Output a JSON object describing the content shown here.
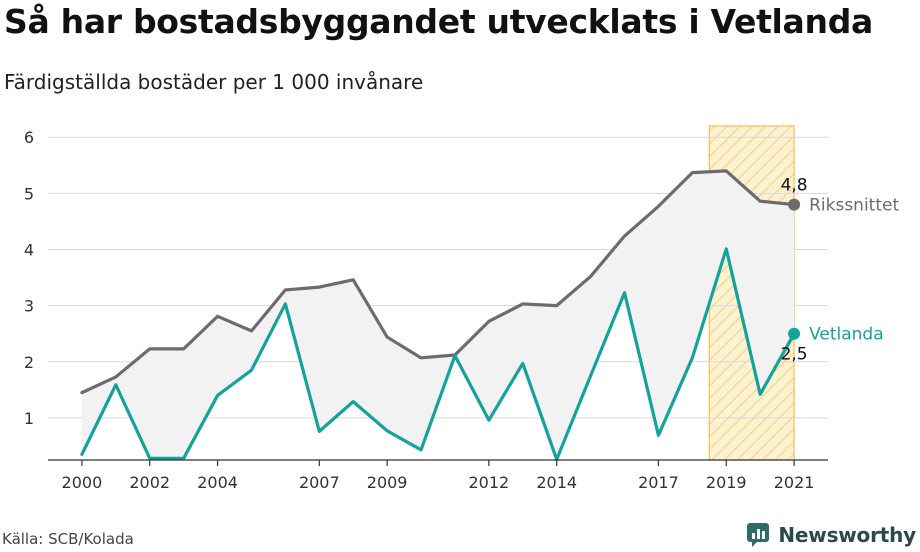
{
  "header": {
    "title": "Så har bostadsbyggandet utvecklats i Vetlanda",
    "subtitle": "Färdigställda bostäder per 1 000 invånare"
  },
  "footer": {
    "source": "Källa: SCB/Kolada",
    "brand": "Newsworthy",
    "brand_icon": "newsworthy-logo-icon"
  },
  "colors": {
    "riket": "#6d6a70",
    "vetlanda": "#14a39a",
    "highlight_fill": "#fbe7a9",
    "highlight_stroke": "#f2c14e",
    "gap_fill": "#f2f2f2",
    "grid": "#d9d9d9",
    "brand": "#2f6b6b"
  },
  "chart_data": {
    "type": "line",
    "x": [
      2000,
      2001,
      2002,
      2003,
      2004,
      2005,
      2006,
      2007,
      2008,
      2009,
      2010,
      2011,
      2012,
      2013,
      2014,
      2015,
      2016,
      2017,
      2018,
      2019,
      2020,
      2021
    ],
    "xticks": [
      "2000",
      "2002",
      "2004",
      "2007",
      "2009",
      "2012",
      "2014",
      "2017",
      "2019",
      "2021"
    ],
    "yticks": [
      "1",
      "2",
      "3",
      "4",
      "5",
      "6"
    ],
    "ylim": [
      0.25,
      6.2
    ],
    "xlim": [
      1999,
      2022
    ],
    "grid": true,
    "highlight_range": [
      2018.5,
      2021
    ],
    "series": [
      {
        "name": "Rikssnittet",
        "color_key": "riket",
        "values": [
          1.45,
          1.73,
          2.23,
          2.23,
          2.81,
          2.55,
          3.28,
          3.33,
          3.46,
          2.44,
          2.07,
          2.12,
          2.72,
          3.03,
          3.0,
          3.52,
          4.24,
          4.77,
          5.37,
          5.4,
          4.86,
          4.8
        ],
        "end_label": "4,8"
      },
      {
        "name": "Vetlanda",
        "color_key": "vetlanda",
        "values": [
          0.35,
          1.59,
          0.28,
          0.28,
          1.4,
          1.85,
          3.03,
          0.76,
          1.29,
          0.77,
          0.43,
          2.11,
          0.96,
          1.97,
          0.26,
          1.75,
          3.23,
          0.69,
          2.07,
          4.01,
          1.42,
          2.5
        ],
        "end_label": "2,5"
      }
    ]
  }
}
